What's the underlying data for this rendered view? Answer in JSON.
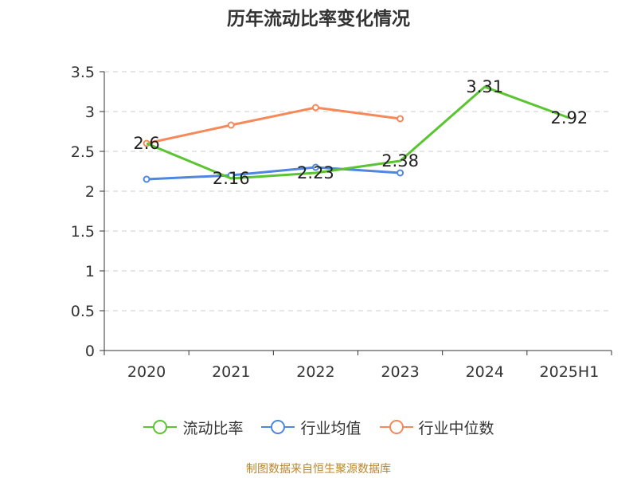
{
  "title": "历年流动比率变化情况",
  "source": "制图数据来自恒生聚源数据库",
  "chart_data": {
    "type": "line",
    "categories": [
      "2020",
      "2021",
      "2022",
      "2023",
      "2024",
      "2025H1"
    ],
    "ylim": [
      0,
      3.5
    ],
    "yticks": [
      "0",
      "0.5",
      "1",
      "1.5",
      "2",
      "2.5",
      "3",
      "3.5"
    ],
    "grid": true,
    "legend_position": "bottom",
    "series": [
      {
        "name": "流动比率",
        "color": "#5ac431",
        "values": [
          2.6,
          2.16,
          2.23,
          2.38,
          3.31,
          2.92
        ],
        "labels": [
          "2.6",
          "2.16",
          "2.23",
          "2.38",
          "3.31",
          "2.92"
        ]
      },
      {
        "name": "行业均值",
        "color": "#4f86e0",
        "values": [
          2.15,
          2.2,
          2.3,
          2.23,
          null,
          null
        ]
      },
      {
        "name": "行业中位数",
        "color": "#f5895a",
        "values": [
          2.6,
          2.83,
          3.05,
          2.91,
          null,
          null
        ]
      }
    ]
  }
}
